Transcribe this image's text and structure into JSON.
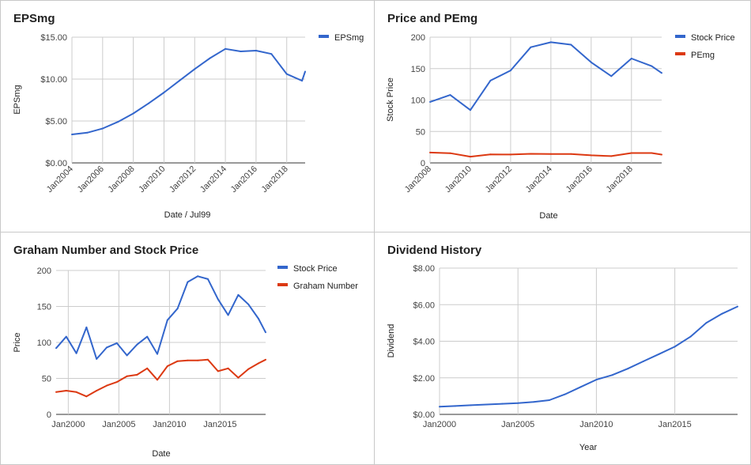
{
  "colors": {
    "blue": "#3366cc",
    "red": "#dc3912"
  },
  "chart_data": [
    {
      "type": "line",
      "title": "EPSmg",
      "xlabel": "Date / Jul99",
      "ylabel": "EPSmg",
      "x_ticks": [
        "Jan2004",
        "Jan2006",
        "Jan2008",
        "Jan2010",
        "Jan2012",
        "Jan2014",
        "Jan2016",
        "Jan2018"
      ],
      "y_ticks": [
        "$0.00",
        "$5.00",
        "$10.00",
        "$15.00"
      ],
      "xlim": [
        2004,
        2019.2
      ],
      "ylim": [
        0,
        15
      ],
      "legend_position": "right",
      "series": [
        {
          "name": "EPSmg",
          "color": "#3366cc",
          "x": [
            2004,
            2005,
            2006,
            2007,
            2008,
            2009,
            2010,
            2011,
            2012,
            2013,
            2014,
            2015,
            2016,
            2017,
            2018,
            2019,
            2019.2
          ],
          "y": [
            3.4,
            3.6,
            4.1,
            4.9,
            5.9,
            7.1,
            8.4,
            9.8,
            11.2,
            12.5,
            13.6,
            13.3,
            13.4,
            13.0,
            10.6,
            9.8,
            10.9
          ]
        }
      ]
    },
    {
      "type": "line",
      "title": "Price and PEmg",
      "xlabel": "Date",
      "ylabel": "Stock Price",
      "x_ticks": [
        "Jan2008",
        "Jan2010",
        "Jan2012",
        "Jan2014",
        "Jan2016",
        "Jan2018"
      ],
      "y_ticks": [
        "0",
        "50",
        "100",
        "150",
        "200"
      ],
      "xlim": [
        2008,
        2019.5
      ],
      "ylim": [
        0,
        200
      ],
      "legend_position": "right",
      "series": [
        {
          "name": "Stock Price",
          "color": "#3366cc",
          "x": [
            2008,
            2009,
            2010,
            2011,
            2012,
            2013,
            2014,
            2015,
            2016,
            2017,
            2018,
            2019,
            2019.5
          ],
          "y": [
            97,
            108,
            84,
            131,
            147,
            184,
            192,
            188,
            160,
            138,
            166,
            154,
            143
          ]
        },
        {
          "name": "PEmg",
          "color": "#dc3912",
          "x": [
            2008,
            2009,
            2010,
            2011,
            2012,
            2013,
            2014,
            2015,
            2016,
            2017,
            2018,
            2019,
            2019.5
          ],
          "y": [
            16.5,
            15.5,
            10,
            13.5,
            13.3,
            14.5,
            14.1,
            14.1,
            12.1,
            10.8,
            15.7,
            15.7,
            13.2
          ]
        }
      ]
    },
    {
      "type": "line",
      "title": "Graham Number and Stock Price",
      "xlabel": "Date",
      "ylabel": "Price",
      "x_ticks": [
        "Jan2000",
        "Jan2005",
        "Jan2010",
        "Jan2015"
      ],
      "y_ticks": [
        "0",
        "50",
        "100",
        "150",
        "200"
      ],
      "xlim": [
        1998.8,
        2019.5
      ],
      "ylim": [
        0,
        200
      ],
      "legend_position": "right",
      "series": [
        {
          "name": "Stock Price",
          "color": "#3366cc",
          "x": [
            1998.8,
            1999.8,
            2000.8,
            2001.8,
            2002.8,
            2003.8,
            2004.8,
            2005.8,
            2006.8,
            2007.8,
            2008.8,
            2009.8,
            2010.8,
            2011.8,
            2012.8,
            2013.8,
            2014.8,
            2015.8,
            2016.8,
            2017.8,
            2018.8,
            2019.5
          ],
          "y": [
            92,
            108,
            85,
            121,
            77,
            93,
            99,
            82,
            97,
            108,
            84,
            131,
            147,
            184,
            192,
            188,
            160,
            138,
            166,
            153,
            133,
            114
          ]
        },
        {
          "name": "Graham Number",
          "color": "#dc3912",
          "x": [
            1998.8,
            1999.8,
            2000.8,
            2001.8,
            2002.8,
            2003.8,
            2004.8,
            2005.8,
            2006.8,
            2007.8,
            2008.8,
            2009.8,
            2010.8,
            2011.8,
            2012.8,
            2013.8,
            2014.8,
            2015.8,
            2016.8,
            2017.8,
            2018.8,
            2019.5
          ],
          "y": [
            31,
            33,
            31,
            25,
            33,
            40,
            45,
            53,
            55,
            64,
            48,
            67,
            74,
            75,
            75,
            76,
            60,
            64,
            51,
            63,
            71,
            76
          ]
        }
      ]
    },
    {
      "type": "line",
      "title": "Dividend History",
      "xlabel": "Year",
      "ylabel": "Dividend",
      "x_ticks": [
        "Jan2000",
        "Jan2005",
        "Jan2010",
        "Jan2015"
      ],
      "y_ticks": [
        "$0.00",
        "$2.00",
        "$4.00",
        "$6.00",
        "$8.00"
      ],
      "xlim": [
        2000,
        2019
      ],
      "ylim": [
        0,
        8
      ],
      "legend_position": "none",
      "series": [
        {
          "name": "Dividend",
          "color": "#3366cc",
          "x": [
            2000,
            2001,
            2002,
            2003,
            2004,
            2005,
            2006,
            2007,
            2008,
            2009,
            2010,
            2011,
            2012,
            2013,
            2014,
            2015,
            2016,
            2017,
            2018,
            2019
          ],
          "y": [
            0.42,
            0.46,
            0.5,
            0.54,
            0.58,
            0.62,
            0.68,
            0.78,
            1.1,
            1.5,
            1.9,
            2.15,
            2.5,
            2.9,
            3.3,
            3.7,
            4.25,
            5.0,
            5.5,
            5.9
          ]
        }
      ]
    }
  ]
}
